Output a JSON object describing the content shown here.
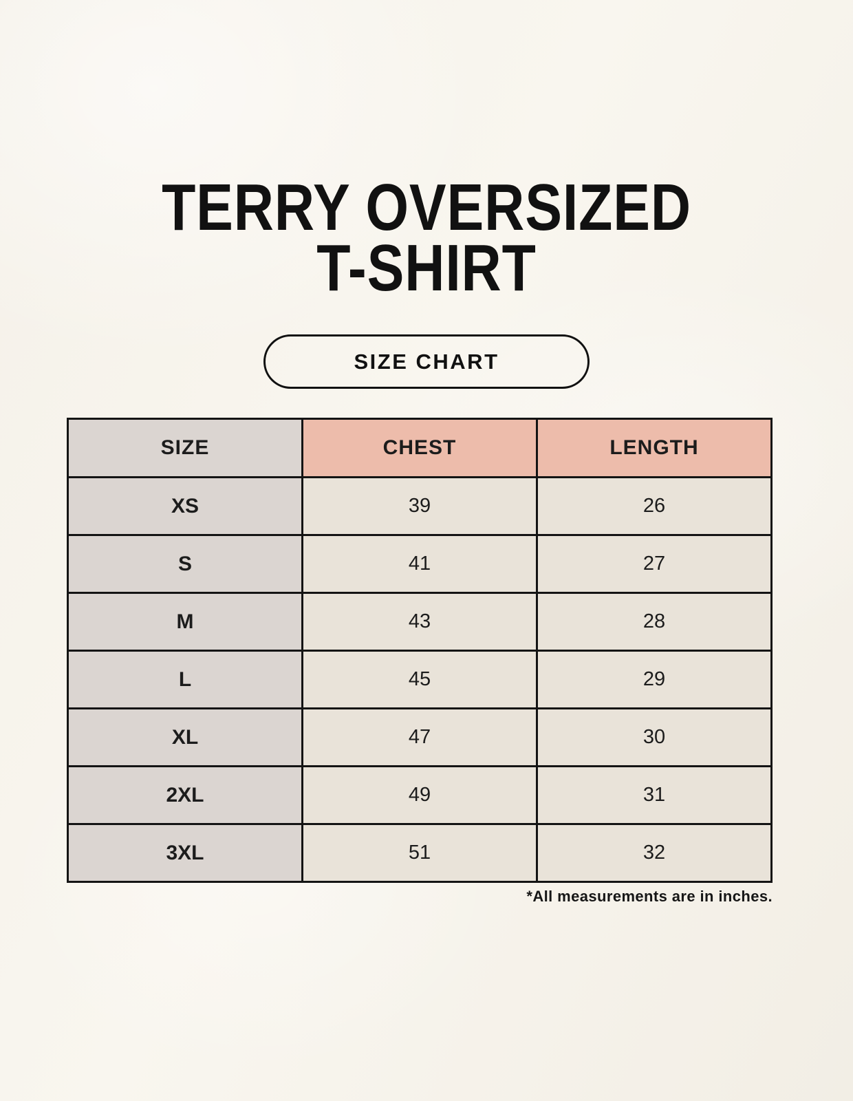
{
  "page": {
    "title_line1": "TERRY OVERSIZED",
    "title_line2": "T-SHIRT",
    "button_label": "SIZE CHART",
    "footnote": "*All measurements are in inches."
  },
  "colors": {
    "background": "#f6f3ec",
    "header_pink": "#edbcab",
    "size_column_gray": "#dbd5d1",
    "cell_cream": "#e9e3d9",
    "border": "#141414",
    "text": "#1c1c1c"
  },
  "chart_data": {
    "type": "table",
    "title": "TERRY OVERSIZED T-SHIRT",
    "subtitle": "SIZE CHART",
    "units": "inches",
    "columns": [
      "SIZE",
      "CHEST",
      "LENGTH"
    ],
    "rows": [
      [
        "XS",
        39,
        26
      ],
      [
        "S",
        41,
        27
      ],
      [
        "M",
        43,
        28
      ],
      [
        "L",
        45,
        29
      ],
      [
        "XL",
        47,
        30
      ],
      [
        "2XL",
        49,
        31
      ],
      [
        "3XL",
        51,
        32
      ]
    ],
    "footnote": "*All measurements are in inches."
  }
}
